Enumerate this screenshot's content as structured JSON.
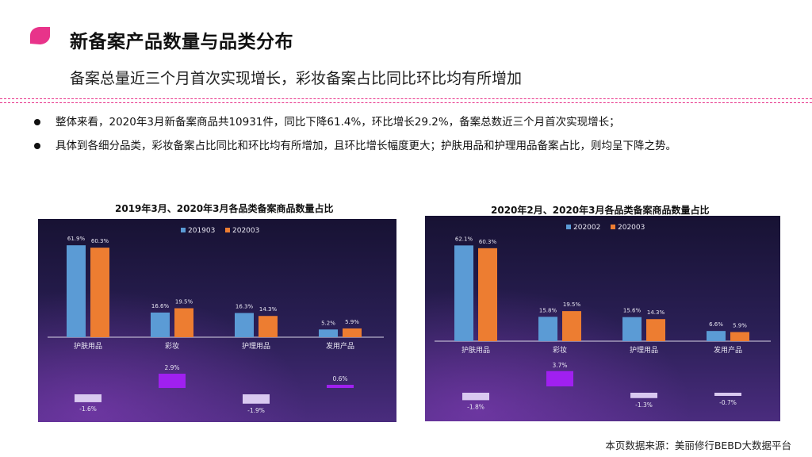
{
  "header": {
    "title": "新备案产品数量与品类分布",
    "subtitle": "备案总量近三个月首次实现增长，彩妆备案占比同比环比均有所增加"
  },
  "bullets": [
    "整体来看，2020年3月新备案商品共10931件，同比下降61.4%，环比增长29.2%，备案总数近三个月首次实现增长；",
    "具体到各细分品类，彩妆备案占比同比和环比均有所增加，且环比增长幅度更大；护肤用品和护理用品备案占比，则均呈下降之势。"
  ],
  "source": "本页数据来源：美丽修行BEBD大数据平台",
  "colors": {
    "accent": "#e8338a",
    "series1": "#5b9bd5",
    "series2": "#ed7d31",
    "diff_positive": "#a020f0",
    "diff_negative": "#d9c9f0",
    "panel_dark": "#1a1238",
    "panel_mid": "#3d2a6e"
  },
  "chart_data": [
    {
      "type": "bar",
      "title": "2019年3月、2020年3月各品类备案商品数量占比",
      "categories": [
        "护肤用品",
        "彩妆",
        "护理用品",
        "发用产品"
      ],
      "series": [
        {
          "name": "201903",
          "values": [
            61.9,
            16.6,
            16.3,
            5.2
          ],
          "labels": [
            "61.9%",
            "16.6%",
            "16.3%",
            "5.2%"
          ]
        },
        {
          "name": "202003",
          "values": [
            60.3,
            19.5,
            14.3,
            5.9
          ],
          "labels": [
            "60.3%",
            "19.5%",
            "14.3%",
            "5.9%"
          ]
        }
      ],
      "differences": [
        -1.6,
        2.9,
        -1.9,
        0.6
      ],
      "difference_labels": [
        "-1.6%",
        "2.9%",
        "-1.9%",
        "0.6%"
      ],
      "ylim": [
        0,
        70
      ],
      "legend": "top-center",
      "grid": false
    },
    {
      "type": "bar",
      "title": "2020年2月、2020年3月各品类备案商品数量占比",
      "categories": [
        "护肤用品",
        "彩妆",
        "护理用品",
        "发用产品"
      ],
      "series": [
        {
          "name": "202002",
          "values": [
            62.1,
            15.8,
            15.6,
            6.6
          ],
          "labels": [
            "62.1%",
            "15.8%",
            "15.6%",
            "6.6%"
          ]
        },
        {
          "name": "202003",
          "values": [
            60.3,
            19.5,
            14.3,
            5.9
          ],
          "labels": [
            "60.3%",
            "19.5%",
            "14.3%",
            "5.9%"
          ]
        }
      ],
      "differences": [
        -1.8,
        3.7,
        -1.3,
        -0.7
      ],
      "difference_labels": [
        "-1.8%",
        "3.7%",
        "-1.3%",
        "-0.7%"
      ],
      "ylim": [
        0,
        70
      ],
      "legend": "top-center",
      "grid": false
    }
  ]
}
